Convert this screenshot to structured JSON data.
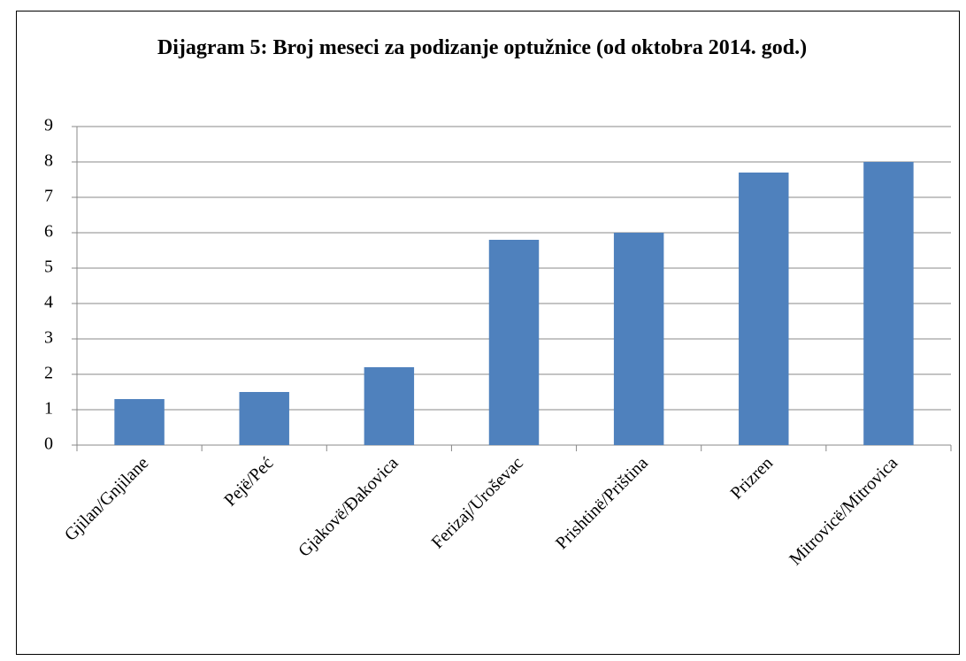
{
  "chart_data": {
    "type": "bar",
    "title": "Dijagram 5: Broj meseci za podizanje optužnice (od oktobra 2014. god.)",
    "categories": [
      "Gjilan/Gnjilane",
      "Pejë/Peć",
      "Gjakovë/Đakovica",
      "Ferizaj/Uroševac",
      "Prishtinë/Priština",
      "Prizren",
      "Mitrovicë/Mitrovica"
    ],
    "values": [
      1.3,
      1.5,
      2.2,
      5.8,
      6.0,
      7.7,
      8.0
    ],
    "color": "#4f81bd",
    "ylim": [
      0,
      9
    ],
    "yticks": [
      0,
      1,
      2,
      3,
      4,
      5,
      6,
      7,
      8,
      9
    ],
    "grid": true
  }
}
